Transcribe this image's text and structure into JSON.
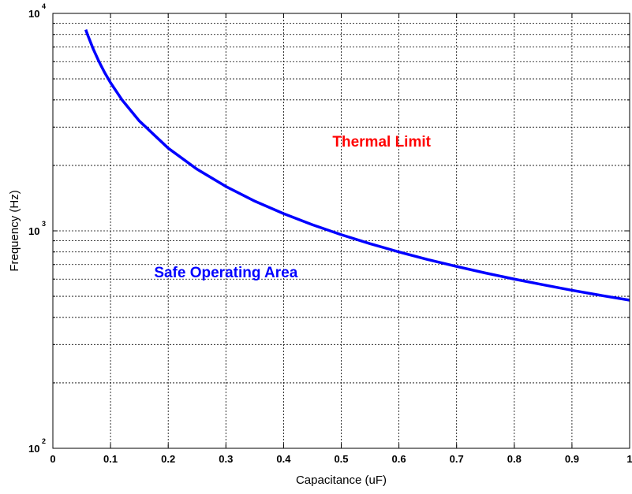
{
  "chart_data": {
    "type": "line",
    "xlabel": "Capacitance (uF)",
    "ylabel": "Frequency (Hz)",
    "xlim": [
      0,
      1
    ],
    "ylim": [
      100,
      10000
    ],
    "yscale": "log",
    "grid": true,
    "grid_style": "dotted",
    "x_ticks": [
      {
        "value": 0,
        "label": "0"
      },
      {
        "value": 0.1,
        "label": "0.1"
      },
      {
        "value": 0.2,
        "label": "0.2"
      },
      {
        "value": 0.3,
        "label": "0.3"
      },
      {
        "value": 0.4,
        "label": "0.4"
      },
      {
        "value": 0.5,
        "label": "0.5"
      },
      {
        "value": 0.6,
        "label": "0.6"
      },
      {
        "value": 0.7,
        "label": "0.7"
      },
      {
        "value": 0.8,
        "label": "0.8"
      },
      {
        "value": 0.9,
        "label": "0.9"
      },
      {
        "value": 1,
        "label": "1"
      }
    ],
    "y_ticks": [
      {
        "value": 100,
        "base": "10",
        "exp": "2"
      },
      {
        "value": 1000,
        "base": "10",
        "exp": "3"
      },
      {
        "value": 10000,
        "base": "10",
        "exp": "4"
      }
    ],
    "y_minor_gridlines": [
      200,
      300,
      400,
      500,
      600,
      700,
      800,
      900,
      2000,
      3000,
      4000,
      5000,
      6000,
      7000,
      8000,
      9000
    ],
    "series": [
      {
        "color": "#0000ff",
        "x": [
          0.057,
          0.06,
          0.07,
          0.08,
          0.09,
          0.1,
          0.12,
          0.15,
          0.2,
          0.25,
          0.3,
          0.35,
          0.4,
          0.45,
          0.5,
          0.55,
          0.6,
          0.65,
          0.7,
          0.75,
          0.8,
          0.85,
          0.9,
          0.95,
          1.0
        ],
        "y": [
          8420,
          8000,
          6860,
          6000,
          5330,
          4800,
          4000,
          3200,
          2400,
          1920,
          1600,
          1370,
          1200,
          1067,
          960,
          873,
          800,
          738,
          686,
          640,
          600,
          565,
          533,
          505,
          480
        ]
      }
    ],
    "annotations": [
      {
        "text": "Thermal Limit",
        "x": 0.57,
        "y": 2000,
        "color": "#ff0000"
      },
      {
        "text": "Safe Operating Area",
        "x": 0.3,
        "y": 500,
        "color": "#0000ff"
      }
    ]
  }
}
